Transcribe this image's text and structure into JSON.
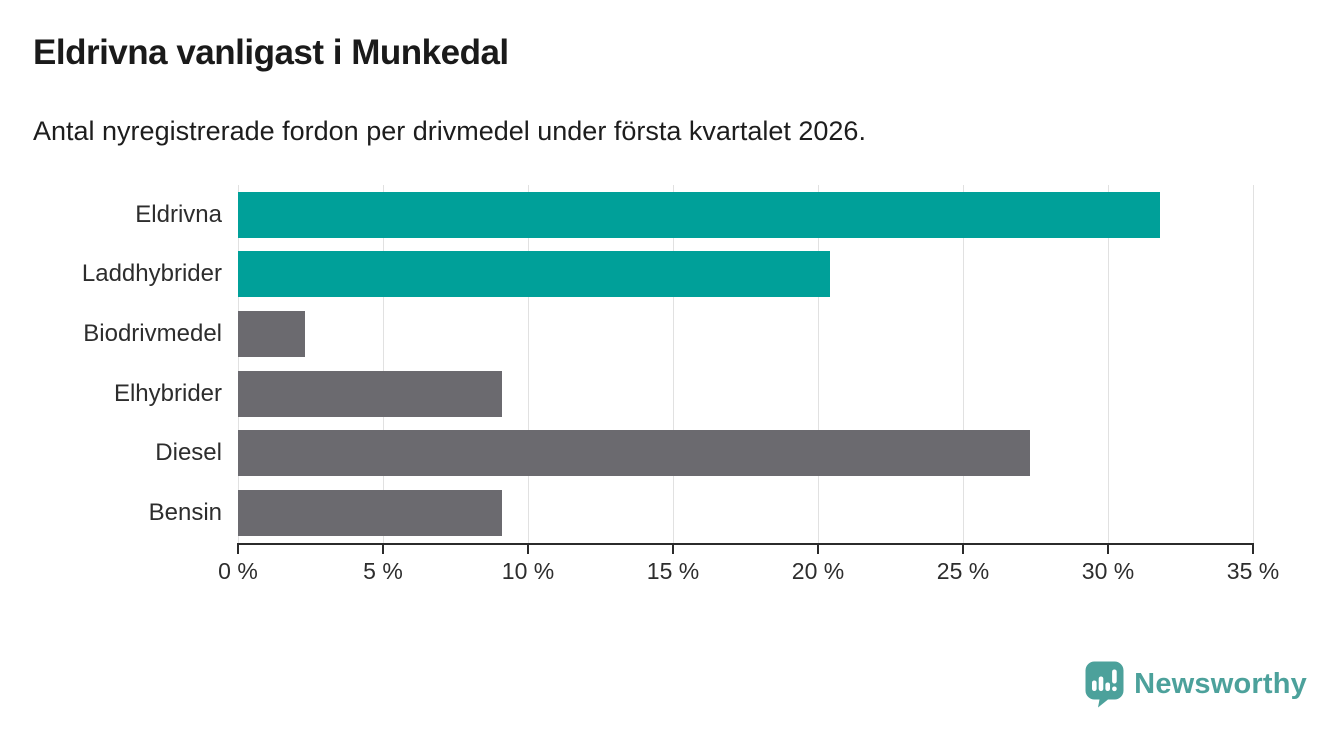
{
  "header": {
    "title": "Eldrivna vanligast i Munkedal",
    "subtitle": "Antal nyregistrerade fordon per drivmedel under första kvartalet 2026."
  },
  "chart_data": {
    "type": "bar",
    "orientation": "horizontal",
    "title": "Eldrivna vanligast i Munkedal",
    "subtitle": "Antal nyregistrerade fordon per drivmedel under första kvartalet 2026.",
    "categories": [
      "Eldrivna",
      "Laddhybrider",
      "Biodrivmedel",
      "Elhybrider",
      "Diesel",
      "Bensin"
    ],
    "values": [
      31.8,
      20.4,
      2.3,
      9.1,
      27.3,
      9.1
    ],
    "bar_colors": [
      "#00A099",
      "#00A099",
      "#6B6A6F",
      "#6B6A6F",
      "#6B6A6F",
      "#6B6A6F"
    ],
    "xlabel": "",
    "ylabel": "",
    "xlim": [
      0,
      35
    ],
    "xticks": [
      0,
      5,
      10,
      15,
      20,
      25,
      30,
      35
    ],
    "xtick_labels": [
      "0 %",
      "5 %",
      "10 %",
      "15 %",
      "20 %",
      "25 %",
      "30 %",
      "35 %"
    ],
    "grid": "vertical",
    "legend": "none"
  },
  "branding": {
    "logo_text": "Newsworthy",
    "logo_icon": "newsworthy-pin-chart-icon",
    "logo_color": "#4CA19B"
  },
  "colors": {
    "accent_teal": "#00A099",
    "bar_gray": "#6B6A6F",
    "gridline": "#E1E1E1",
    "axis": "#2B2B2B",
    "title_text": "#1A1A1A"
  }
}
